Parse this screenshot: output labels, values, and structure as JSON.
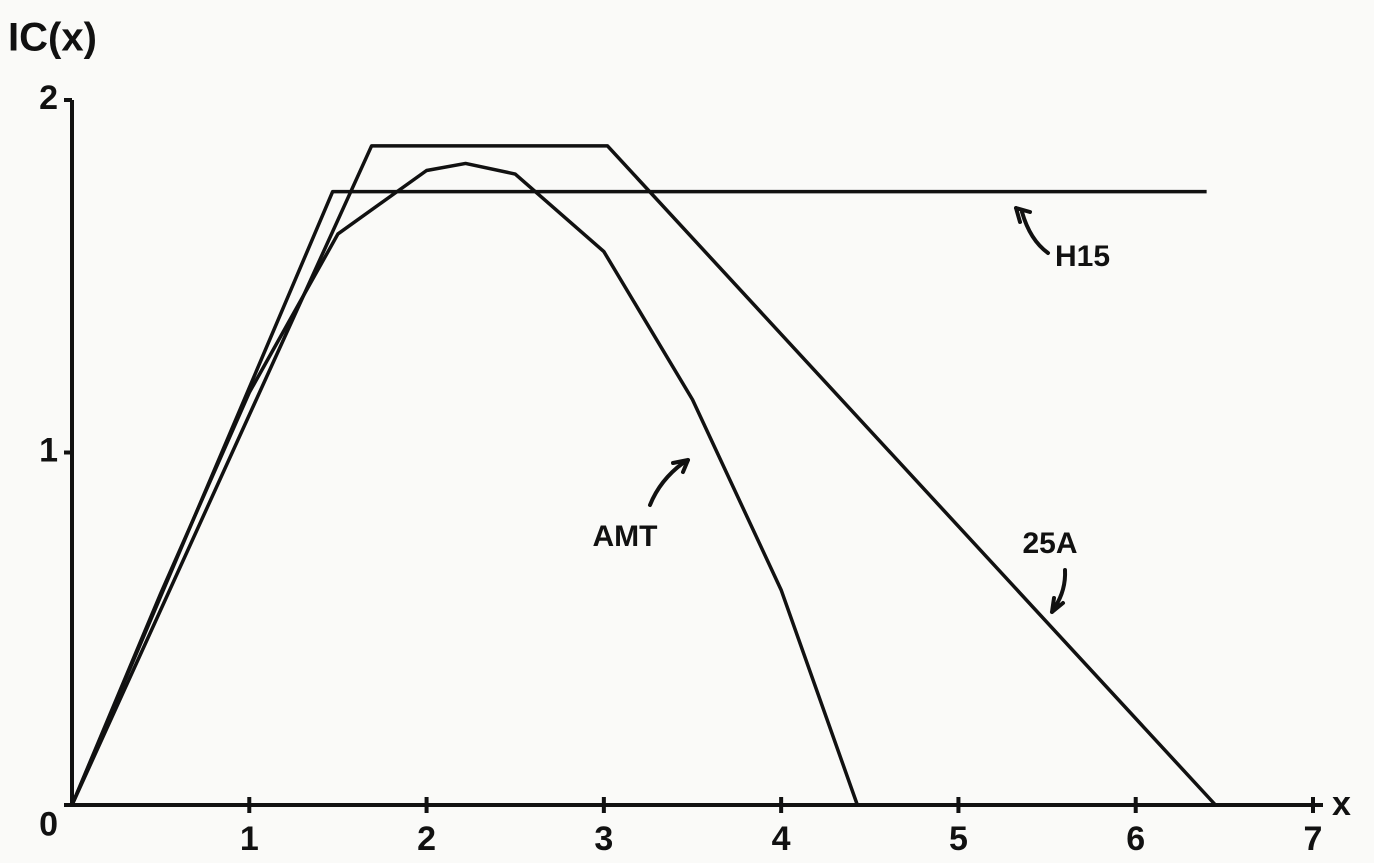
{
  "chart_data": {
    "type": "line",
    "y_label": "IC(x)",
    "x_label": "x",
    "xlim": [
      0,
      7
    ],
    "ylim": [
      0,
      2
    ],
    "xticks": [
      1,
      2,
      3,
      4,
      5,
      6,
      7
    ],
    "yticks": [
      0,
      1,
      2
    ],
    "series": [
      {
        "name": "H15",
        "color": "#111111",
        "x": [
          0,
          1.47,
          6.4
        ],
        "values": [
          0,
          1.74,
          1.74
        ]
      },
      {
        "name": "25A",
        "color": "#111111",
        "x": [
          0,
          1.69,
          3.02,
          6.45
        ],
        "values": [
          0,
          1.87,
          1.87,
          0
        ]
      },
      {
        "name": "AMT",
        "color": "#111111",
        "x": [
          0,
          0.5,
          1,
          1.5,
          2,
          2.22,
          2.5,
          3,
          3.5,
          4,
          4.43
        ],
        "values": [
          0,
          0.6,
          1.17,
          1.62,
          1.8,
          1.82,
          1.79,
          1.57,
          1.15,
          0.61,
          0
        ]
      }
    ]
  }
}
